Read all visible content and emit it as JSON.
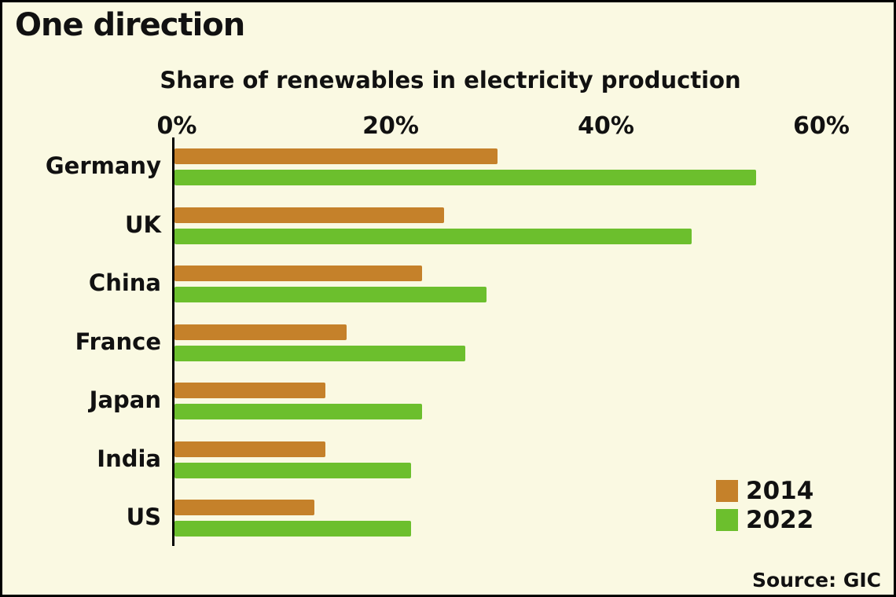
{
  "title": "One direction",
  "subtitle": "Share of renewables in electricity production",
  "source": "Source: GIC",
  "colors": {
    "background": "#FAF9E2",
    "axis": "#000000",
    "series_2014": "#C5812A",
    "series_2022": "#6CBF2D"
  },
  "chart_data": {
    "type": "bar",
    "orientation": "horizontal",
    "title": "Share of renewables in electricity production",
    "categories": [
      "Germany",
      "UK",
      "China",
      "France",
      "Japan",
      "India",
      "US"
    ],
    "series": [
      {
        "name": "2014",
        "color": "#C5812A",
        "values": [
          30,
          25,
          23,
          16,
          14,
          14,
          13
        ]
      },
      {
        "name": "2022",
        "color": "#6CBF2D",
        "values": [
          54,
          48,
          29,
          27,
          23,
          22,
          22
        ]
      }
    ],
    "xlabel": "",
    "ylabel": "",
    "x_ticks": [
      "0%",
      "20%",
      "40%",
      "60%"
    ],
    "xlim": [
      0,
      60
    ],
    "grid": false,
    "legend_position": "bottom-right"
  }
}
